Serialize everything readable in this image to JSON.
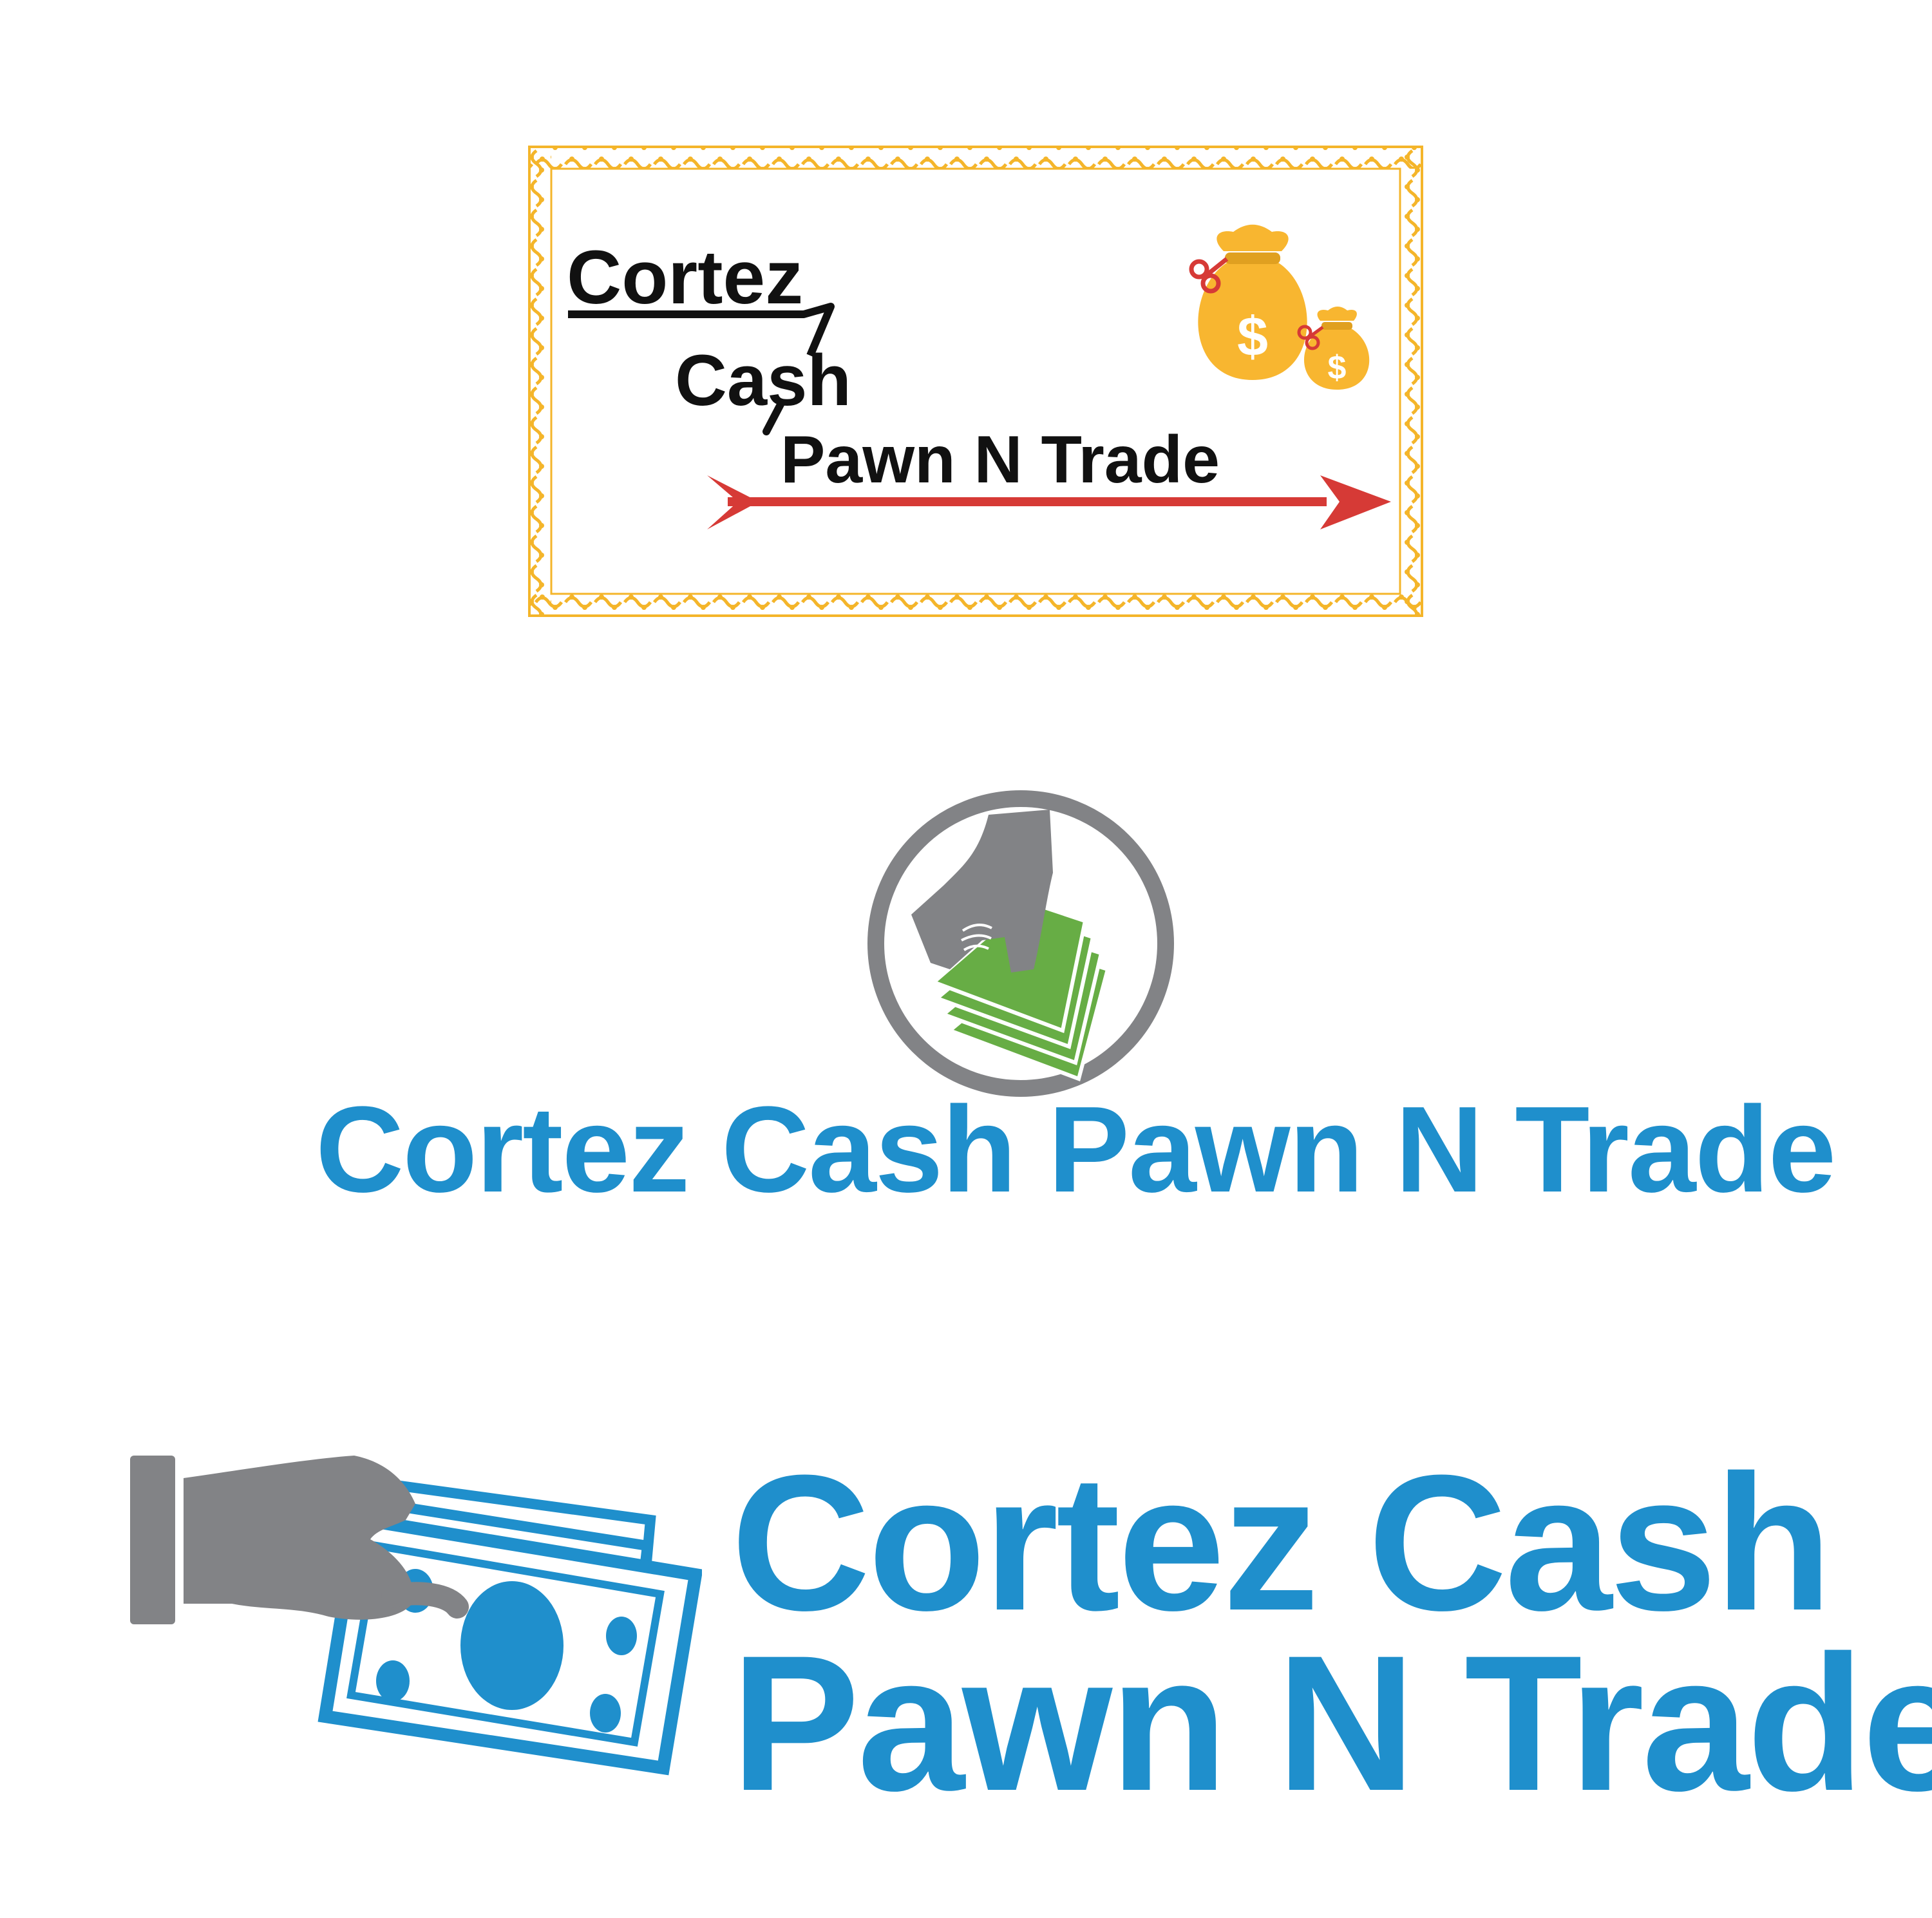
{
  "logo1": {
    "word1": "Cortez",
    "word2": "Cash",
    "word3": "Pawn N Trade",
    "colors": {
      "text": "#111111",
      "arrow": "#d63a36",
      "frame": "#f4b52a",
      "bag": "#f8b630",
      "ribbon": "#d63a36"
    },
    "icons": [
      "ornate-frame-icon",
      "money-bag-icon",
      "arrow-icon"
    ]
  },
  "logo2": {
    "name": "Cortez Cash Pawn N Trade",
    "colors": {
      "text": "#1f8fcc",
      "ring": "#828386",
      "cash": "#67ad45"
    },
    "icons": [
      "hand-holding-cash-icon"
    ]
  },
  "logo3": {
    "line1": "Cortez Cash",
    "line2": "Pawn N Trade",
    "colors": {
      "text": "#1f8fcc",
      "hand": "#828386",
      "bill": "#1f8fcc"
    },
    "icons": [
      "hand-giving-money-icon"
    ]
  }
}
